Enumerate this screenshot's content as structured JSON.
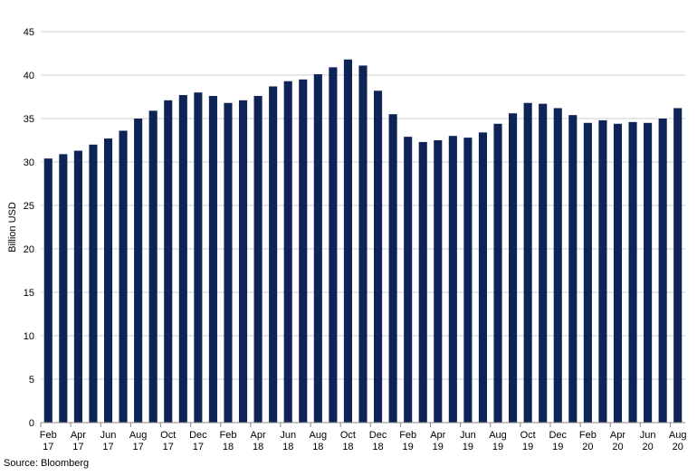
{
  "chart_data": {
    "type": "bar",
    "title": "",
    "ylabel": "Billion USD",
    "xlabel": "",
    "ylim": [
      0,
      45
    ],
    "yticks": [
      0,
      5,
      10,
      15,
      20,
      25,
      30,
      35,
      40,
      45
    ],
    "grid": true,
    "bar_color": "#0F2456",
    "categories": [
      "Feb 17",
      "Mar 17",
      "Apr 17",
      "May 17",
      "Jun 17",
      "Jul 17",
      "Aug 17",
      "Sep 17",
      "Oct 17",
      "Nov 17",
      "Dec 17",
      "Jan 18",
      "Feb 18",
      "Mar 18",
      "Apr 18",
      "May 18",
      "Jun 18",
      "Jul 18",
      "Aug 18",
      "Sep 18",
      "Oct 18",
      "Nov 18",
      "Dec 18",
      "Jan 19",
      "Feb 19",
      "Mar 19",
      "Apr 19",
      "May 19",
      "Jun 19",
      "Jul 19",
      "Aug 19",
      "Sep 19",
      "Oct 19",
      "Nov 19",
      "Dec 19",
      "Jan 20",
      "Feb 20",
      "Mar 20",
      "Apr 20",
      "May 20",
      "Jun 20",
      "Jul 20",
      "Aug 20"
    ],
    "tick_labels": [
      {
        "month": "Feb",
        "year": "17"
      },
      {
        "month": "Apr",
        "year": "17"
      },
      {
        "month": "Jun",
        "year": "17"
      },
      {
        "month": "Aug",
        "year": "17"
      },
      {
        "month": "Oct",
        "year": "17"
      },
      {
        "month": "Dec",
        "year": "17"
      },
      {
        "month": "Feb",
        "year": "18"
      },
      {
        "month": "Apr",
        "year": "18"
      },
      {
        "month": "Jun",
        "year": "18"
      },
      {
        "month": "Aug",
        "year": "18"
      },
      {
        "month": "Oct",
        "year": "18"
      },
      {
        "month": "Dec",
        "year": "18"
      },
      {
        "month": "Feb",
        "year": "19"
      },
      {
        "month": "Apr",
        "year": "19"
      },
      {
        "month": "Jun",
        "year": "19"
      },
      {
        "month": "Aug",
        "year": "19"
      },
      {
        "month": "Oct",
        "year": "19"
      },
      {
        "month": "Dec",
        "year": "19"
      },
      {
        "month": "Feb",
        "year": "20"
      },
      {
        "month": "Apr",
        "year": "20"
      },
      {
        "month": "Jun",
        "year": "20"
      },
      {
        "month": "Aug",
        "year": "20"
      }
    ],
    "values": [
      30.4,
      30.9,
      31.3,
      32.0,
      32.7,
      33.6,
      35.0,
      35.9,
      37.1,
      37.7,
      38.0,
      37.6,
      36.8,
      37.1,
      37.6,
      38.7,
      39.3,
      39.5,
      40.1,
      40.9,
      41.8,
      41.1,
      38.2,
      35.5,
      32.9,
      32.3,
      32.5,
      33.0,
      32.8,
      33.4,
      34.4,
      35.6,
      36.8,
      36.7,
      36.2,
      35.4,
      34.5,
      34.8,
      34.4,
      34.6,
      34.5,
      35.0,
      36.2
    ]
  },
  "source": "Source: Bloomberg"
}
